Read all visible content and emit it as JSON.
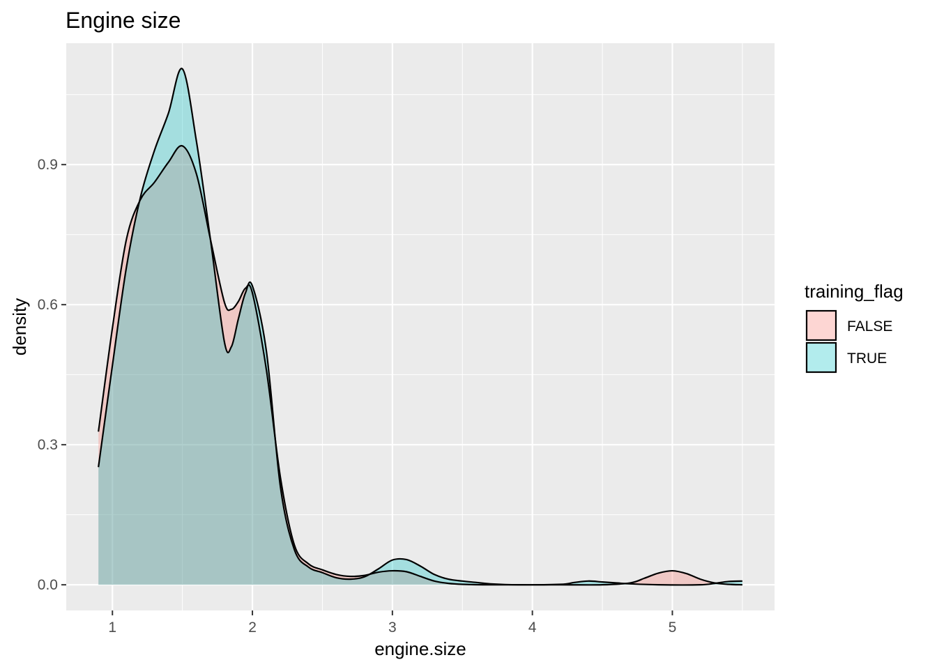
{
  "chart_data": {
    "type": "area",
    "title": "Engine size",
    "xlabel": "engine.size",
    "ylabel": "density",
    "xlim": [
      0.67,
      5.73
    ],
    "ylim": [
      -0.055,
      1.16
    ],
    "x_ticks": [
      1,
      2,
      3,
      4,
      5
    ],
    "y_ticks": [
      0.0,
      0.3,
      0.6,
      0.9
    ],
    "x_tick_labels": [
      "1",
      "2",
      "3",
      "4",
      "5"
    ],
    "y_tick_labels": [
      "0.0",
      "0.3",
      "0.6",
      "0.9"
    ],
    "grid": true,
    "legend_position": "right",
    "legend_title": "training_flag",
    "series": [
      {
        "name": "FALSE",
        "color": "#F8766D",
        "points": [
          [
            0.9,
            0.328
          ],
          [
            1.0,
            0.55
          ],
          [
            1.1,
            0.74
          ],
          [
            1.2,
            0.825
          ],
          [
            1.3,
            0.862
          ],
          [
            1.4,
            0.905
          ],
          [
            1.5,
            0.94
          ],
          [
            1.6,
            0.88
          ],
          [
            1.7,
            0.74
          ],
          [
            1.8,
            0.605
          ],
          [
            1.85,
            0.59
          ],
          [
            1.9,
            0.607
          ],
          [
            1.95,
            0.635
          ],
          [
            2.0,
            0.625
          ],
          [
            2.1,
            0.46
          ],
          [
            2.2,
            0.23
          ],
          [
            2.3,
            0.085
          ],
          [
            2.4,
            0.045
          ],
          [
            2.5,
            0.032
          ],
          [
            2.6,
            0.022
          ],
          [
            2.7,
            0.018
          ],
          [
            2.8,
            0.02
          ],
          [
            2.9,
            0.027
          ],
          [
            3.0,
            0.03
          ],
          [
            3.1,
            0.028
          ],
          [
            3.2,
            0.018
          ],
          [
            3.3,
            0.008
          ],
          [
            3.4,
            0.003
          ],
          [
            3.5,
            0.001
          ],
          [
            3.7,
            0.0
          ],
          [
            4.2,
            0.0
          ],
          [
            4.5,
            0.0
          ],
          [
            4.7,
            0.004
          ],
          [
            4.8,
            0.014
          ],
          [
            4.9,
            0.025
          ],
          [
            5.0,
            0.03
          ],
          [
            5.1,
            0.024
          ],
          [
            5.2,
            0.012
          ],
          [
            5.3,
            0.004
          ],
          [
            5.4,
            0.001
          ],
          [
            5.5,
            0.0
          ]
        ]
      },
      {
        "name": "TRUE",
        "color": "#00BFC4",
        "points": [
          [
            0.9,
            0.252
          ],
          [
            1.0,
            0.47
          ],
          [
            1.1,
            0.68
          ],
          [
            1.2,
            0.83
          ],
          [
            1.3,
            0.93
          ],
          [
            1.4,
            1.01
          ],
          [
            1.5,
            1.105
          ],
          [
            1.6,
            0.95
          ],
          [
            1.7,
            0.74
          ],
          [
            1.8,
            0.52
          ],
          [
            1.85,
            0.51
          ],
          [
            1.9,
            0.57
          ],
          [
            1.95,
            0.625
          ],
          [
            2.0,
            0.64
          ],
          [
            2.1,
            0.5
          ],
          [
            2.2,
            0.21
          ],
          [
            2.3,
            0.075
          ],
          [
            2.4,
            0.038
          ],
          [
            2.5,
            0.026
          ],
          [
            2.6,
            0.015
          ],
          [
            2.7,
            0.012
          ],
          [
            2.8,
            0.017
          ],
          [
            2.9,
            0.034
          ],
          [
            3.0,
            0.053
          ],
          [
            3.1,
            0.054
          ],
          [
            3.2,
            0.04
          ],
          [
            3.3,
            0.022
          ],
          [
            3.4,
            0.012
          ],
          [
            3.5,
            0.008
          ],
          [
            3.6,
            0.005
          ],
          [
            3.7,
            0.002
          ],
          [
            3.9,
            0.0
          ],
          [
            4.2,
            0.001
          ],
          [
            4.3,
            0.005
          ],
          [
            4.4,
            0.008
          ],
          [
            4.5,
            0.006
          ],
          [
            4.6,
            0.004
          ],
          [
            4.7,
            0.002
          ],
          [
            4.9,
            0.0
          ],
          [
            5.2,
            0.0
          ],
          [
            5.3,
            0.003
          ],
          [
            5.4,
            0.007
          ],
          [
            5.5,
            0.008
          ]
        ]
      }
    ]
  }
}
